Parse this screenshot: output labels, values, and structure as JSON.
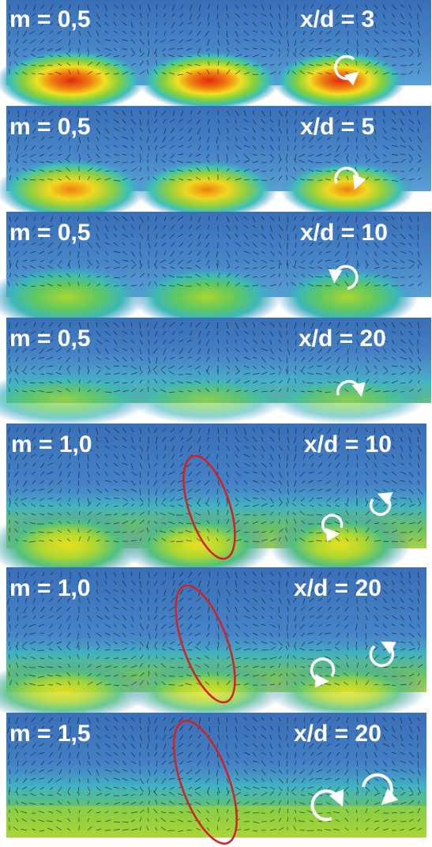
{
  "figure": {
    "panels": [
      {
        "mixing_label": "m = 0,5",
        "distance_label": "x/d = 3"
      },
      {
        "mixing_label": "m = 0,5",
        "distance_label": "x/d = 5"
      },
      {
        "mixing_label": "m = 0,5",
        "distance_label": "x/d = 10"
      },
      {
        "mixing_label": "m = 0,5",
        "distance_label": "x/d = 20"
      },
      {
        "mixing_label": "m = 1,0",
        "distance_label": "x/d = 10"
      },
      {
        "mixing_label": "m = 1,0",
        "distance_label": "x/d = 20"
      },
      {
        "mixing_label": "m = 1,5",
        "distance_label": "x/d = 20"
      }
    ],
    "colors": {
      "background_flow": "#3f7bc4",
      "low_field": "#5aa0d8",
      "mid_field": "#3cc0b0",
      "high_field": "#c8d820",
      "peak_field": "#e83010",
      "vector_arrows": "#111111",
      "vortex_marker": "#ffffff",
      "highlight_ellipse": "#d42020"
    },
    "icons": {
      "vortex_marker": "circular-arrow-icon",
      "highlight": "red-ellipse"
    }
  }
}
